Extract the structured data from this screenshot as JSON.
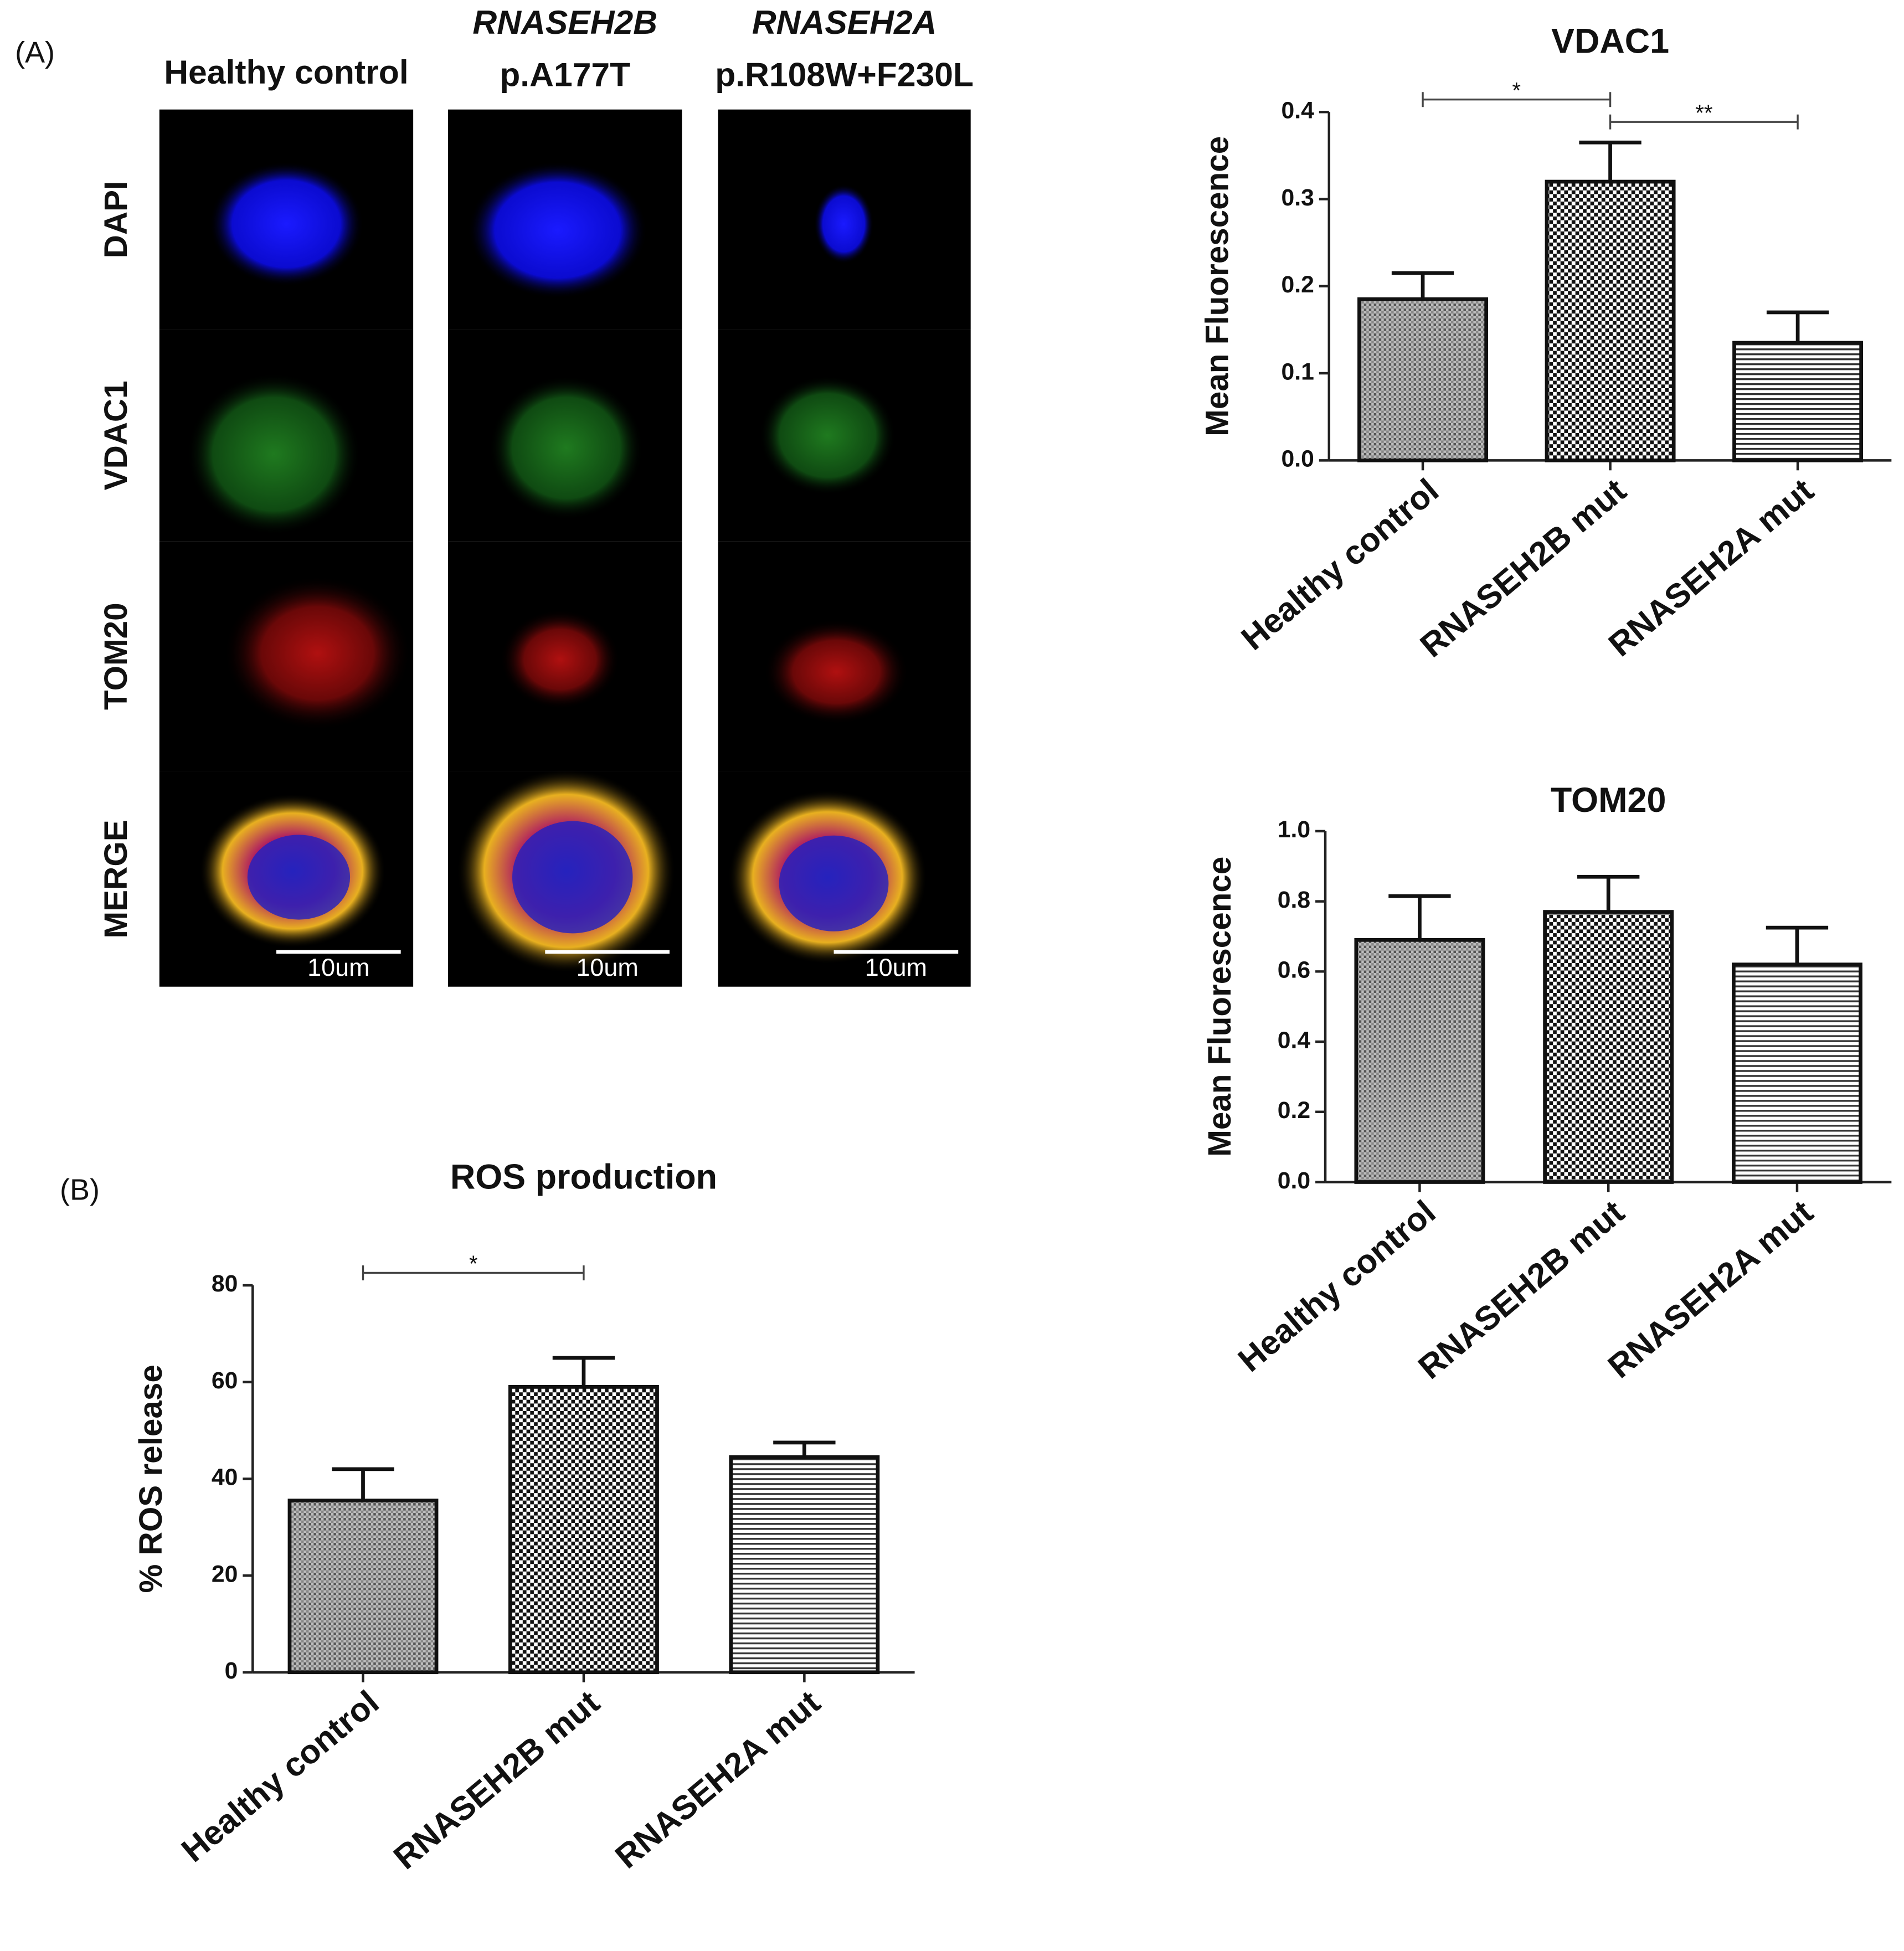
{
  "panel_labels": [
    "(A)",
    "(B)"
  ],
  "microscopy": {
    "columns": [
      {
        "lines": [
          "Healthy control"
        ]
      },
      {
        "lines": [
          "RNASEH2B",
          "p.A177T"
        ]
      },
      {
        "lines": [
          "RNASEH2A",
          "p.R108W+F230L"
        ]
      }
    ],
    "rows": [
      "DAPI",
      "VDAC1",
      "TOM20",
      "MERGE"
    ],
    "scale_bar": "10um"
  },
  "chart_data": [
    {
      "type": "bar",
      "title": "VDAC1",
      "y_label": "Mean Fluorescence",
      "categories": [
        "Healthy control",
        "RNASEH2B mut",
        "RNASEH2A mut"
      ],
      "values": [
        0.185,
        0.32,
        0.135
      ],
      "errors": [
        0.03,
        0.045,
        0.035
      ],
      "patterns": [
        "dots",
        "checker",
        "lines"
      ],
      "ylim": [
        0,
        0.4
      ],
      "yticks": [
        {
          "value": 0,
          "label": "0.0"
        },
        0.1,
        0.2,
        0.3,
        0.4
      ],
      "annotations": [
        {
          "text": "*",
          "from": 0,
          "to": 1
        },
        {
          "text": "**",
          "from": 1,
          "to": 2
        }
      ]
    },
    {
      "type": "bar",
      "title": "TOM20",
      "y_label": "Mean Fluorescence",
      "categories": [
        "Healthy control",
        "RNASEH2B mut",
        "RNASEH2A mut"
      ],
      "values": [
        0.69,
        0.77,
        0.62
      ],
      "errors": [
        0.125,
        0.1,
        0.105
      ],
      "patterns": [
        "dots",
        "checker",
        "lines"
      ],
      "ylim": [
        0,
        1
      ],
      "yticks": [
        {
          "value": 0,
          "label": "0.0"
        },
        0.2,
        0.4,
        0.6,
        0.8,
        {
          "value": 1,
          "label": "1.0"
        }
      ],
      "annotations": []
    },
    {
      "type": "bar",
      "title": "ROS production",
      "y_label": "% ROS release",
      "categories": [
        "Healthy control",
        "RNASEH2B mut",
        "RNASEH2A mut"
      ],
      "values": [
        35.5,
        59,
        44.5
      ],
      "errors": [
        6.5,
        6,
        3
      ],
      "patterns": [
        "dots",
        "checker",
        "lines"
      ],
      "ylim": [
        0,
        80
      ],
      "yticks": [
        0,
        20,
        40,
        60,
        80
      ],
      "annotations": [
        {
          "text": "*",
          "from": 0,
          "to": 1
        }
      ]
    }
  ]
}
